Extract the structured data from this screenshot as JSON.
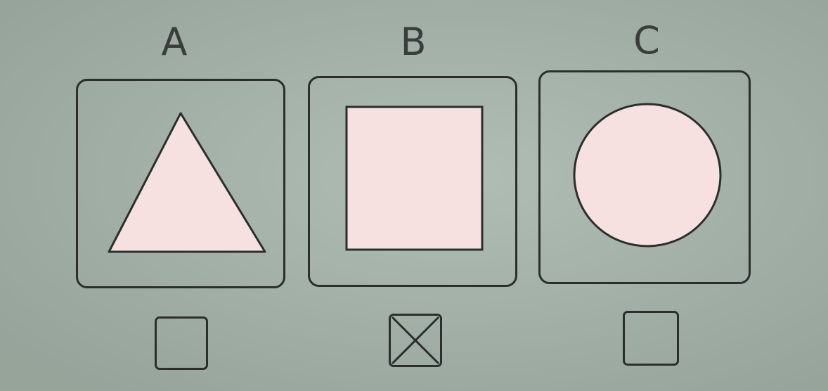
{
  "options": [
    {
      "id": "a",
      "label": "A",
      "shape": "triangle",
      "checked": false
    },
    {
      "id": "b",
      "label": "B",
      "shape": "square",
      "checked": true
    },
    {
      "id": "c",
      "label": "C",
      "shape": "circle",
      "checked": false
    }
  ],
  "colors": {
    "background": "#a7b6ac",
    "outline": "#2c2e2d",
    "shape_fill": "#f6e1e0",
    "label_text": "#3a3d3c"
  }
}
